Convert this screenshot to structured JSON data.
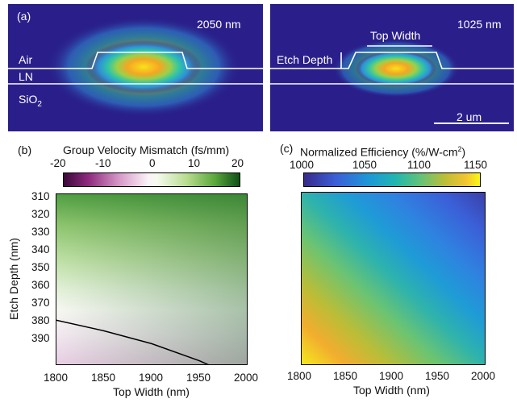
{
  "panel_a": {
    "label": "(a)",
    "wavelength": "2050 nm",
    "region_labels": {
      "air": "Air",
      "ln": "LN",
      "sio2_base": "SiO",
      "sio2_sub": "2"
    }
  },
  "panel_right": {
    "wavelength": "1025 nm",
    "top_width_label": "Top Width",
    "etch_depth_label": "Etch Depth",
    "scale_bar_label": "2 um"
  },
  "panel_b": {
    "label": "(b)",
    "colorbar_title": "Group Velocity Mismatch (fs/mm)",
    "colorbar_ticks": [
      "-20",
      "-10",
      "0",
      "10",
      "20"
    ],
    "ylabel": "Etch Depth (nm)",
    "xlabel": "Top Width (nm)",
    "xticks": [
      "1800",
      "1850",
      "1900",
      "1950",
      "2000"
    ],
    "yticks": [
      "310",
      "320",
      "330",
      "340",
      "350",
      "360",
      "370",
      "380",
      "390"
    ]
  },
  "panel_c": {
    "label": "(c)",
    "colorbar_title_main": "Normalized Efficiency (%/W-cm",
    "colorbar_title_sup": "2",
    "colorbar_title_end": ")",
    "colorbar_ticks": [
      "1000",
      "1050",
      "1100",
      "1150"
    ],
    "xlabel": "Top Width (nm)",
    "xticks": [
      "1800",
      "1850",
      "1900",
      "1950",
      "2000"
    ]
  },
  "chart_data": [
    {
      "type": "heatmap",
      "title": "Group Velocity Mismatch (fs/mm)",
      "xlabel": "Top Width (nm)",
      "ylabel": "Etch Depth (nm)",
      "xlim": [
        1800,
        2000
      ],
      "ylim": [
        390,
        310
      ],
      "colorbar_range": [
        -20,
        20
      ],
      "colormap": "purple-white-green (PiYG)",
      "corner_values": {
        "x1800_y310": 10,
        "x2000_y310": 20,
        "x1800_y390": -3,
        "x2000_y390": 1
      },
      "zero_contour": [
        [
          1800,
          369
        ],
        [
          1850,
          374
        ],
        [
          1900,
          380
        ],
        [
          1950,
          388
        ],
        [
          1960,
          390
        ]
      ]
    },
    {
      "type": "heatmap",
      "title": "Normalized Efficiency (%/W-cm2)",
      "xlabel": "Top Width (nm)",
      "ylabel": "Etch Depth (nm)",
      "xlim": [
        1800,
        2000
      ],
      "ylim": [
        390,
        310
      ],
      "colorbar_range": [
        1000,
        1150
      ],
      "colormap": "parula",
      "corner_values": {
        "x1800_y310": 1090,
        "x2000_y310": 1010,
        "x1800_y390": 1150,
        "x2000_y390": 1060
      }
    }
  ]
}
